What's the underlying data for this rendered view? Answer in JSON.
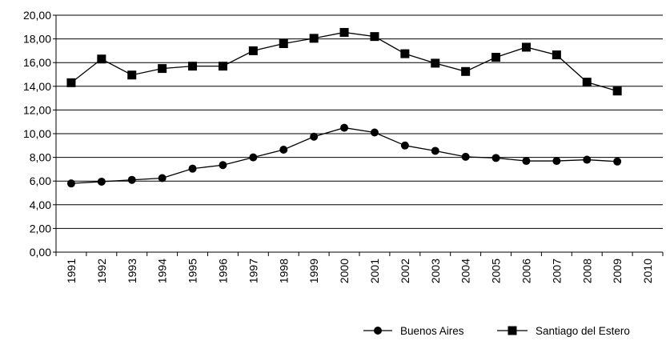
{
  "chart_data": {
    "type": "line",
    "title": "",
    "xlabel": "",
    "ylabel": "",
    "x": [
      "1991",
      "1992",
      "1993",
      "1994",
      "1995",
      "1996",
      "1997",
      "1998",
      "1999",
      "2000",
      "2001",
      "2002",
      "2003",
      "2004",
      "2005",
      "2006",
      "2007",
      "2008",
      "2009",
      "2010"
    ],
    "ylim": [
      0,
      20
    ],
    "yticks": [
      "0,00",
      "2,00",
      "4,00",
      "6,00",
      "8,00",
      "10,00",
      "12,00",
      "14,00",
      "16,00",
      "18,00",
      "20,00"
    ],
    "grid": "horizontal",
    "legend_position": "bottom-right",
    "series": [
      {
        "name": "Buenos Aires",
        "marker": "circle",
        "color": "#000000",
        "values": [
          5.8,
          5.95,
          6.1,
          6.25,
          7.05,
          7.35,
          8.0,
          8.65,
          9.75,
          10.5,
          10.1,
          9.0,
          8.55,
          8.05,
          7.95,
          7.7,
          7.7,
          7.8,
          7.65,
          null
        ]
      },
      {
        "name": "Santiago del Estero",
        "marker": "square",
        "color": "#000000",
        "values": [
          14.3,
          16.3,
          14.95,
          15.5,
          15.7,
          15.7,
          17.0,
          17.6,
          18.05,
          18.55,
          18.2,
          16.75,
          15.95,
          15.25,
          16.45,
          17.3,
          16.65,
          14.35,
          13.6,
          null
        ]
      }
    ]
  }
}
